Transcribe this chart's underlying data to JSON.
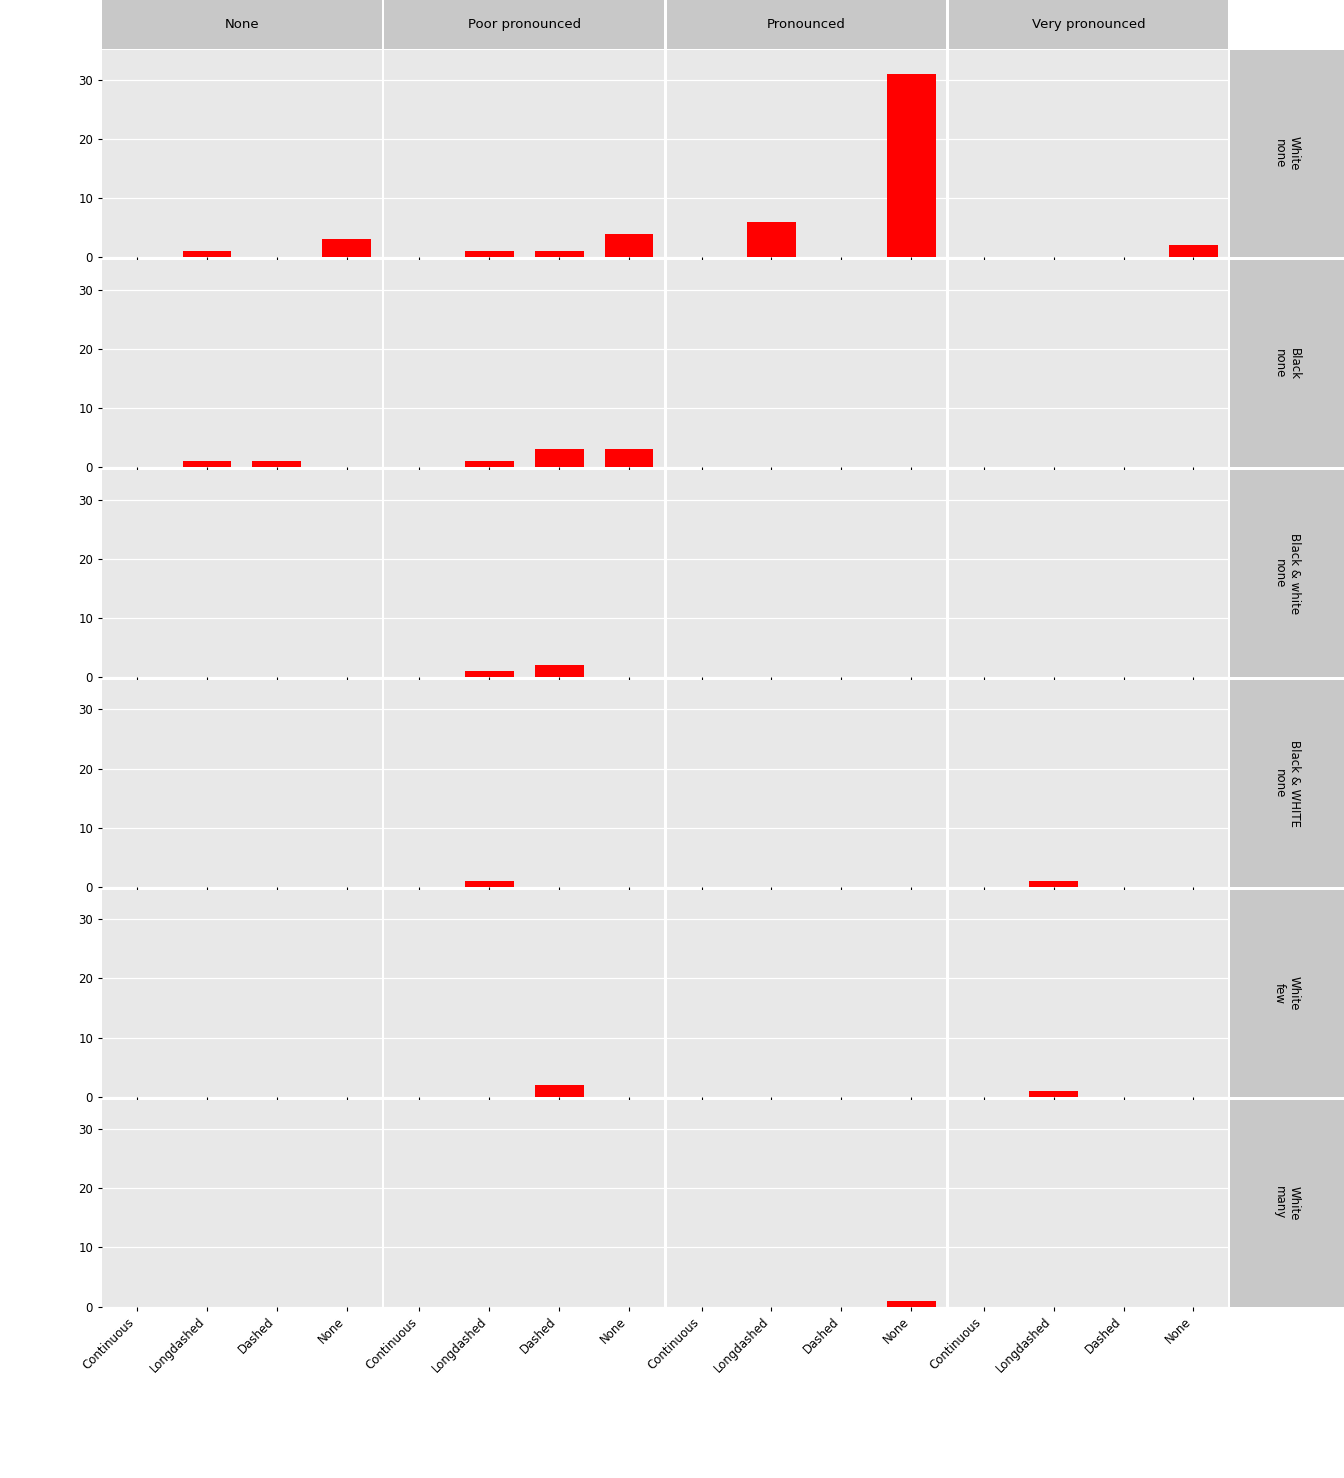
{
  "col_labels": [
    "None",
    "Poor pronounced",
    "Pronounced",
    "Very pronounced"
  ],
  "row_labels": [
    [
      "none",
      "White"
    ],
    [
      "none",
      "Black"
    ],
    [
      "none",
      "Black & white"
    ],
    [
      "none",
      "Black & WHITE"
    ],
    [
      "few",
      "White"
    ],
    [
      "many",
      "White"
    ]
  ],
  "x_categories": [
    "Continuous",
    "Longdashed",
    "Dashed",
    "None"
  ],
  "bar_color": "#ff0000",
  "plot_bg": "#e8e8e8",
  "col_strip_bg": "#c8c8c8",
  "row_strip_bg": "#c8c8c8",
  "yticks": [
    0,
    10,
    20,
    30
  ],
  "ylim": [
    0,
    35
  ],
  "bar_data": {
    "0_0": {
      "Continuous": 0,
      "Longdashed": 1,
      "Dashed": 0,
      "None": 3
    },
    "0_1": {
      "Continuous": 0,
      "Longdashed": 1,
      "Dashed": 1,
      "None": 4
    },
    "0_2": {
      "Continuous": 0,
      "Longdashed": 6,
      "Dashed": 0,
      "None": 31
    },
    "0_3": {
      "Continuous": 0,
      "Longdashed": 0,
      "Dashed": 0,
      "None": 2
    },
    "1_0": {
      "Continuous": 0,
      "Longdashed": 1,
      "Dashed": 1,
      "None": 0
    },
    "1_1": {
      "Continuous": 0,
      "Longdashed": 1,
      "Dashed": 3,
      "None": 3
    },
    "1_2": {
      "Continuous": 0,
      "Longdashed": 0,
      "Dashed": 0,
      "None": 0
    },
    "1_3": {
      "Continuous": 0,
      "Longdashed": 0,
      "Dashed": 0,
      "None": 0
    },
    "2_0": {
      "Continuous": 0,
      "Longdashed": 0,
      "Dashed": 0,
      "None": 0
    },
    "2_1": {
      "Continuous": 0,
      "Longdashed": 1,
      "Dashed": 2,
      "None": 0
    },
    "2_2": {
      "Continuous": 0,
      "Longdashed": 0,
      "Dashed": 0,
      "None": 0
    },
    "2_3": {
      "Continuous": 0,
      "Longdashed": 0,
      "Dashed": 0,
      "None": 0
    },
    "3_0": {
      "Continuous": 0,
      "Longdashed": 0,
      "Dashed": 0,
      "None": 0
    },
    "3_1": {
      "Continuous": 0,
      "Longdashed": 1,
      "Dashed": 0,
      "None": 0
    },
    "3_2": {
      "Continuous": 0,
      "Longdashed": 0,
      "Dashed": 0,
      "None": 0
    },
    "3_3": {
      "Continuous": 0,
      "Longdashed": 1,
      "Dashed": 0,
      "None": 0
    },
    "4_0": {
      "Continuous": 0,
      "Longdashed": 0,
      "Dashed": 0,
      "None": 0
    },
    "4_1": {
      "Continuous": 0,
      "Longdashed": 0,
      "Dashed": 2,
      "None": 0
    },
    "4_2": {
      "Continuous": 0,
      "Longdashed": 0,
      "Dashed": 0,
      "None": 0
    },
    "4_3": {
      "Continuous": 0,
      "Longdashed": 1,
      "Dashed": 0,
      "None": 0
    },
    "5_0": {
      "Continuous": 0,
      "Longdashed": 0,
      "Dashed": 0,
      "None": 0
    },
    "5_1": {
      "Continuous": 0,
      "Longdashed": 0,
      "Dashed": 0,
      "None": 0
    },
    "5_2": {
      "Continuous": 0,
      "Longdashed": 0,
      "Dashed": 0,
      "None": 1
    },
    "5_3": {
      "Continuous": 0,
      "Longdashed": 0,
      "Dashed": 0,
      "None": 0
    }
  },
  "fig_width": 13.44,
  "fig_height": 14.78,
  "col_strip_fontsize": 9.5,
  "row_strip_fontsize": 8.5,
  "axis_fontsize": 8.5,
  "tick_fontsize": 8.5,
  "bar_width": 0.7
}
